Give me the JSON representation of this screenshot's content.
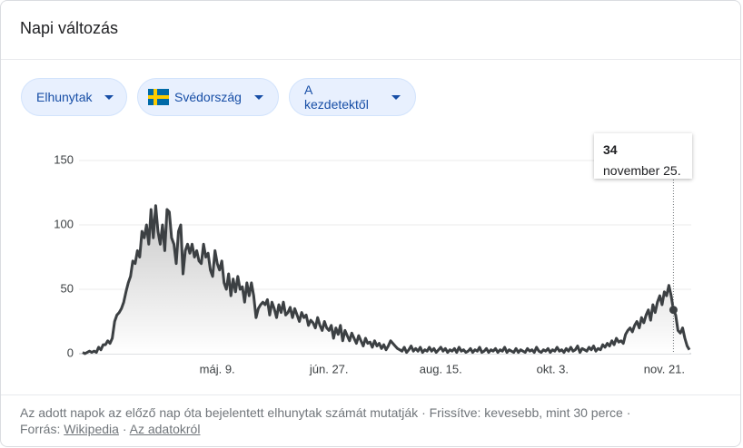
{
  "header": {
    "title": "Napi változás"
  },
  "filters": [
    "Elhunytak",
    "Svédország",
    "A kezdetektől"
  ],
  "chart_data": {
    "type": "line",
    "color": "#3c4043",
    "grid": true,
    "ylim": [
      0,
      150
    ],
    "yticks": [
      0,
      50,
      100,
      150
    ],
    "categories": [
      null,
      null,
      null,
      null,
      null,
      null,
      null,
      null,
      null,
      null,
      null,
      null,
      null,
      null,
      null,
      null,
      null,
      null,
      null,
      null,
      null,
      null,
      null,
      null,
      null,
      null,
      null,
      null,
      null,
      null,
      null,
      null,
      null,
      null,
      null,
      null,
      null,
      null,
      null,
      null,
      null,
      null,
      null,
      null,
      null,
      null,
      null,
      null,
      null,
      null,
      null,
      null,
      null,
      null,
      null,
      null,
      null,
      null,
      null,
      "máj. 9.",
      null,
      null,
      null,
      null,
      null,
      null,
      null,
      null,
      null,
      null,
      null,
      null,
      null,
      null,
      null,
      null,
      null,
      null,
      null,
      null,
      null,
      null,
      null,
      null,
      null,
      null,
      null,
      null,
      null,
      null,
      null,
      null,
      null,
      null,
      null,
      null,
      null,
      null,
      null,
      null,
      null,
      null,
      null,
      null,
      null,
      null,
      null,
      null,
      "jún. 27.",
      null,
      null,
      null,
      null,
      null,
      null,
      null,
      null,
      null,
      null,
      null,
      null,
      null,
      null,
      null,
      null,
      null,
      null,
      null,
      null,
      null,
      null,
      null,
      null,
      null,
      null,
      null,
      null,
      null,
      null,
      null,
      null,
      null,
      null,
      null,
      null,
      null,
      null,
      null,
      null,
      null,
      null,
      null,
      null,
      null,
      null,
      null,
      null,
      "aug. 15.",
      null,
      null,
      null,
      null,
      null,
      null,
      null,
      null,
      null,
      null,
      null,
      null,
      null,
      null,
      null,
      null,
      null,
      null,
      null,
      null,
      null,
      null,
      null,
      null,
      null,
      null,
      null,
      null,
      null,
      null,
      null,
      null,
      null,
      null,
      null,
      null,
      null,
      null,
      null,
      null,
      null,
      null,
      null,
      null,
      null,
      null,
      null,
      null,
      "okt. 3.",
      null,
      null,
      null,
      null,
      null,
      null,
      null,
      null,
      null,
      null,
      null,
      null,
      null,
      null,
      null,
      null,
      null,
      null,
      null,
      null,
      null,
      null,
      null,
      null,
      null,
      null,
      null,
      null,
      null,
      null,
      null,
      null,
      null,
      null,
      null,
      null,
      null,
      null,
      null,
      null,
      null,
      null,
      null,
      null,
      null,
      null,
      null,
      null,
      "nov. 21.",
      null,
      null,
      null,
      null,
      null,
      null,
      null,
      null,
      null,
      null,
      null
    ],
    "values": [
      1,
      0,
      1,
      2,
      1,
      2,
      1,
      5,
      3,
      7,
      7,
      10,
      8,
      12,
      25,
      30,
      32,
      35,
      40,
      48,
      55,
      60,
      72,
      70,
      80,
      75,
      95,
      90,
      100,
      85,
      112,
      90,
      115,
      95,
      85,
      100,
      80,
      112,
      110,
      90,
      85,
      70,
      95,
      100,
      62,
      80,
      85,
      78,
      85,
      75,
      80,
      72,
      70,
      85,
      75,
      78,
      65,
      60,
      80,
      70,
      65,
      72,
      55,
      50,
      62,
      45,
      58,
      48,
      60,
      50,
      52,
      40,
      55,
      45,
      55,
      45,
      28,
      35,
      38,
      40,
      38,
      42,
      30,
      40,
      35,
      28,
      38,
      32,
      40,
      30,
      32,
      36,
      28,
      35,
      30,
      25,
      32,
      28,
      30,
      22,
      26,
      24,
      20,
      28,
      22,
      18,
      25,
      20,
      18,
      22,
      12,
      20,
      15,
      22,
      10,
      18,
      14,
      10,
      16,
      12,
      8,
      14,
      10,
      6,
      12,
      8,
      9,
      5,
      10,
      6,
      8,
      4,
      7,
      3,
      6,
      10,
      8,
      6,
      4,
      3,
      2,
      5,
      1,
      3,
      6,
      2,
      4,
      2,
      5,
      1,
      3,
      2,
      5,
      2,
      4,
      1,
      3,
      5,
      2,
      4,
      1,
      3,
      2,
      4,
      1,
      5,
      2,
      3,
      1,
      2,
      4,
      1,
      3,
      2,
      5,
      1,
      2,
      4,
      1,
      3,
      2,
      4,
      1,
      3,
      2,
      5,
      1,
      3,
      2,
      1,
      4,
      1,
      3,
      2,
      1,
      4,
      2,
      3,
      1,
      5,
      2,
      1,
      3,
      2,
      4,
      1,
      3,
      2,
      5,
      2,
      3,
      1,
      4,
      2,
      5,
      2,
      3,
      6,
      1,
      4,
      3,
      2,
      5,
      3,
      6,
      2,
      4,
      3,
      7,
      5,
      8,
      6,
      10,
      7,
      12,
      9,
      10,
      8,
      15,
      18,
      20,
      17,
      22,
      25,
      20,
      28,
      24,
      30,
      34,
      26,
      38,
      32,
      40,
      45,
      38,
      48,
      45,
      53,
      45,
      34,
      30,
      18,
      16,
      20,
      12,
      6,
      3
    ]
  },
  "tooltip": {
    "label": "november 25."
  },
  "footer": {
    "note": "Az adott napok az előző nap óta bejelentett elhunytak számát mutatják",
    "separator": "·",
    "updated": "Frissítve: kevesebb, mint 30 perce",
    "source_label": "Forrás:",
    "source_link": "Wikipedia",
    "about": "Az adatokról"
  }
}
